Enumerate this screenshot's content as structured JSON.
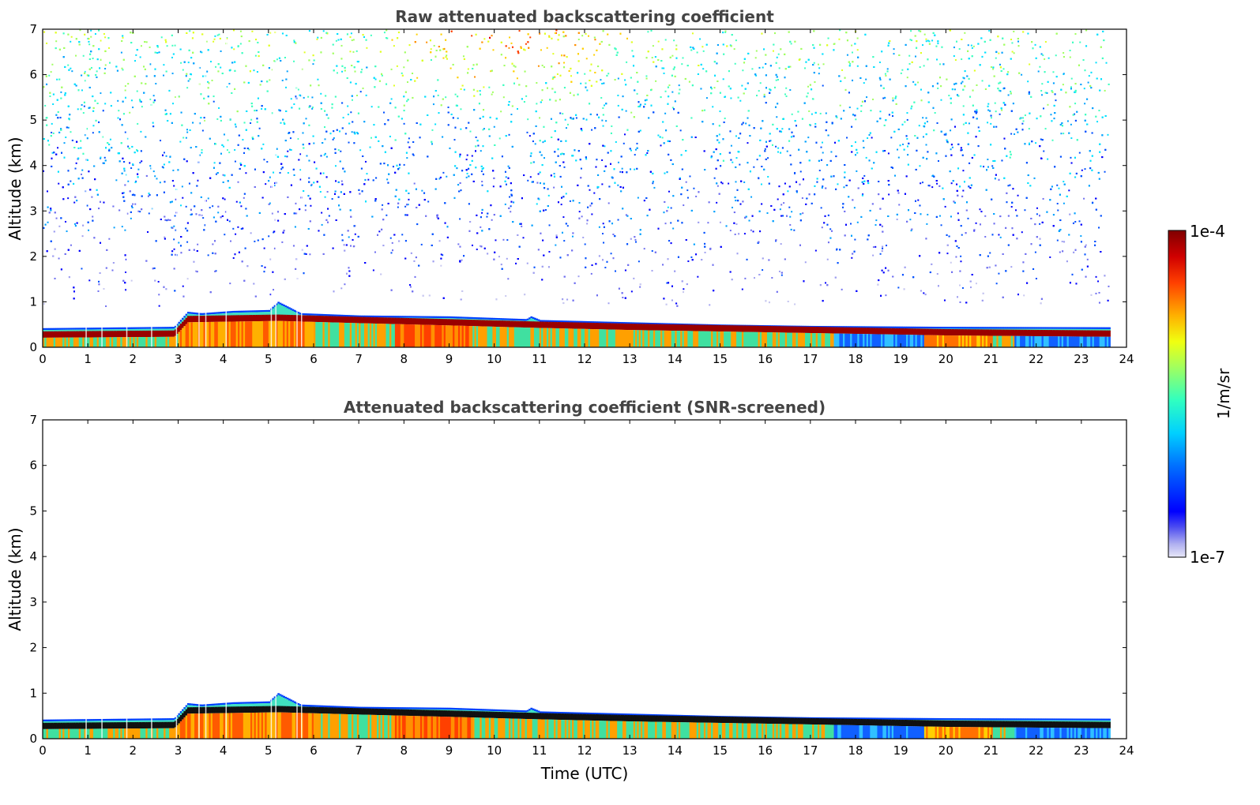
{
  "chart_data": [
    {
      "type": "heatmap",
      "title": "Raw attenuated backscattering coefficient",
      "xlabel": "",
      "ylabel": "Altitude (km)",
      "xlim": [
        0,
        24
      ],
      "ylim": [
        0,
        7
      ],
      "x_ticks": [
        "0",
        "1",
        "2",
        "3",
        "4",
        "5",
        "6",
        "7",
        "8",
        "9",
        "10",
        "11",
        "12",
        "13",
        "14",
        "15",
        "16",
        "17",
        "18",
        "19",
        "20",
        "21",
        "22",
        "23",
        "24"
      ],
      "y_ticks": [
        "0",
        "1",
        "2",
        "3",
        "4",
        "5",
        "6",
        "7"
      ],
      "data_end_hour": 23.6,
      "layer_top_km": [
        [
          0,
          0.42
        ],
        [
          2.9,
          0.45
        ],
        [
          3.2,
          0.78
        ],
        [
          3.5,
          0.75
        ],
        [
          4.2,
          0.8
        ],
        [
          5.0,
          0.82
        ],
        [
          5.2,
          1.0
        ],
        [
          5.7,
          0.75
        ],
        [
          7,
          0.7
        ],
        [
          9,
          0.68
        ],
        [
          10.7,
          0.62
        ],
        [
          10.8,
          0.68
        ],
        [
          11,
          0.6
        ],
        [
          13,
          0.55
        ],
        [
          15,
          0.5
        ],
        [
          17,
          0.47
        ],
        [
          20,
          0.45
        ],
        [
          23.6,
          0.44
        ]
      ],
      "max_backscatter_layer_km": [
        [
          0,
          0.28
        ],
        [
          2.9,
          0.3
        ],
        [
          3.2,
          0.62
        ],
        [
          5.2,
          0.65
        ],
        [
          7,
          0.6
        ],
        [
          9,
          0.55
        ],
        [
          10.8,
          0.5
        ],
        [
          13,
          0.45
        ],
        [
          16,
          0.4
        ],
        [
          20,
          0.33
        ],
        [
          23.6,
          0.3
        ]
      ],
      "noise_hotspot": {
        "x_hour": 10.2,
        "y_km": 6.8
      }
    },
    {
      "type": "heatmap",
      "title": "Attenuated backscattering coefficient (SNR-screened)",
      "xlabel": "Time (UTC)",
      "ylabel": "Altitude (km)",
      "xlim": [
        0,
        24
      ],
      "ylim": [
        0,
        7
      ],
      "x_ticks": [
        "0",
        "1",
        "2",
        "3",
        "4",
        "5",
        "6",
        "7",
        "8",
        "9",
        "10",
        "11",
        "12",
        "13",
        "14",
        "15",
        "16",
        "17",
        "18",
        "19",
        "20",
        "21",
        "22",
        "23",
        "24"
      ],
      "y_ticks": [
        "0",
        "1",
        "2",
        "3",
        "4",
        "5",
        "6",
        "7"
      ],
      "data_end_hour": 23.6
    }
  ],
  "colorbar": {
    "label": "1/m/sr",
    "max_label": "1e-4",
    "min_label": "1e-7",
    "colors": [
      "#e8e8f8",
      "#c8c8f0",
      "#a0a0f0",
      "#7070f0",
      "#0000ff",
      "#0050ff",
      "#00a0ff",
      "#00e0ff",
      "#40ffc0",
      "#a0ff60",
      "#e0ff20",
      "#ffd000",
      "#ff9000",
      "#ff4000",
      "#e00000",
      "#800000"
    ]
  }
}
